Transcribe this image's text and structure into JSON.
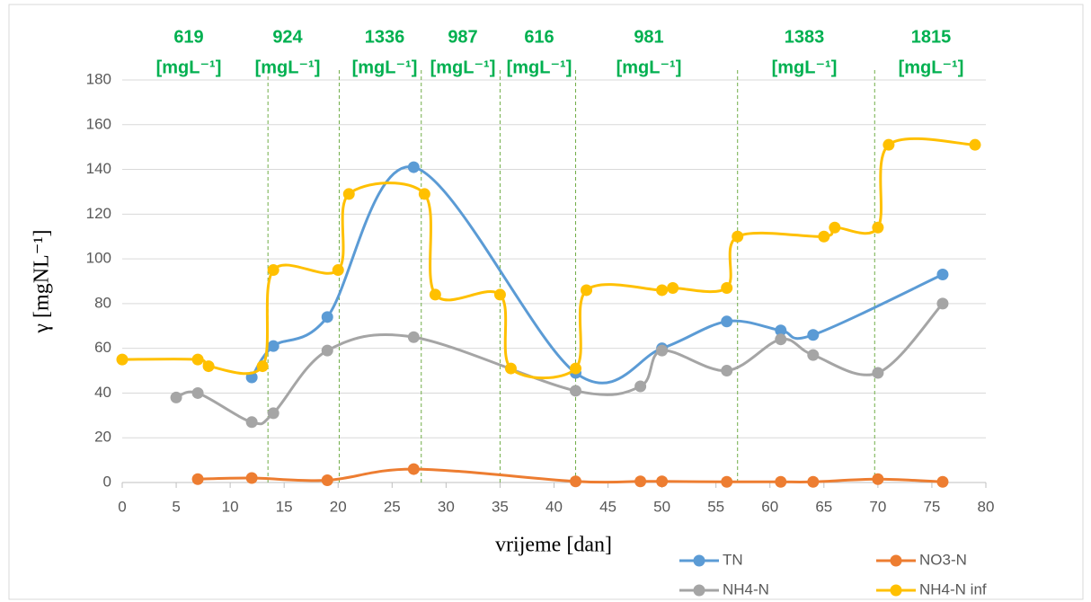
{
  "chart_data": {
    "type": "line",
    "x_label": "vrijeme [dan]",
    "y_label": "γ [mgNL⁻¹]",
    "xlim": [
      0,
      80
    ],
    "xticks": [
      0,
      5,
      10,
      15,
      20,
      25,
      30,
      35,
      40,
      45,
      50,
      55,
      60,
      65,
      70,
      75,
      80
    ],
    "ylim": [
      0,
      180
    ],
    "yticks": [
      0,
      20,
      40,
      60,
      80,
      100,
      120,
      140,
      160,
      180
    ],
    "grid": true,
    "smooth": true,
    "legend": "bottom-right",
    "period_boundaries": {
      "color": "#70ad47",
      "x": [
        13.5,
        20.1,
        27.7,
        35,
        42,
        57,
        69.7
      ]
    },
    "annotations": [
      {
        "text": "619",
        "unit": "[mgL⁻¹]"
      },
      {
        "text": "924",
        "unit": "[mgL⁻¹]"
      },
      {
        "text": "1336",
        "unit": "[mgL⁻¹]"
      },
      {
        "text": "987",
        "unit": "[mgL⁻¹]"
      },
      {
        "text": "616",
        "unit": "[mgL⁻¹]"
      },
      {
        "text": "981",
        "unit": "[mgL⁻¹]"
      },
      {
        "text": "1383",
        "unit": "[mgL⁻¹]"
      },
      {
        "text": "1815",
        "unit": "[mgL⁻¹]"
      }
    ],
    "series": [
      {
        "name": "TN",
        "color": "#5b9bd5",
        "x": [
          12,
          14,
          19,
          27,
          42,
          50,
          56,
          61,
          64,
          76
        ],
        "values": [
          47,
          61,
          74,
          141,
          49,
          60,
          72,
          68,
          66,
          93
        ]
      },
      {
        "name": "NO3-N",
        "color": "#ed7d31",
        "x": [
          7,
          12,
          19,
          27,
          42,
          48,
          50,
          56,
          61,
          64,
          70,
          76
        ],
        "values": [
          1.5,
          2,
          1,
          6,
          0.5,
          0.5,
          0.5,
          0.3,
          0.3,
          0.3,
          1.5,
          0.3
        ]
      },
      {
        "name": "NH4-N",
        "color": "#a5a5a5",
        "x": [
          5,
          7,
          12,
          14,
          19,
          27,
          42,
          48,
          50,
          56,
          61,
          64,
          70,
          76
        ],
        "values": [
          38,
          40,
          27,
          31,
          59,
          65,
          41,
          43,
          59,
          50,
          64,
          57,
          49,
          80
        ]
      },
      {
        "name": "NH4-N inf",
        "color": "#ffc000",
        "x": [
          0,
          7,
          8,
          13,
          14,
          20,
          21,
          28,
          29,
          35,
          36,
          42,
          43,
          50,
          51,
          56,
          57,
          65,
          66,
          70,
          71,
          79
        ],
        "values": [
          55,
          55,
          52,
          52,
          95,
          95,
          129,
          129,
          84,
          84,
          51,
          51,
          86,
          86,
          87,
          87,
          110,
          110,
          114,
          114,
          151,
          151
        ]
      }
    ]
  }
}
